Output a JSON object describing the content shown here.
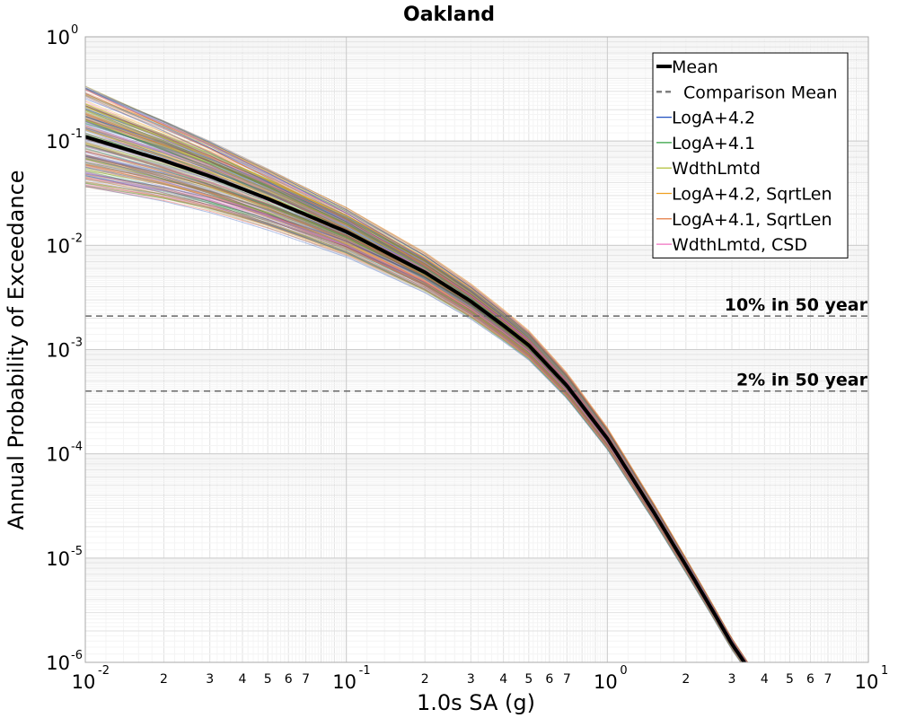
{
  "chart_data": {
    "type": "line",
    "title": "Oakland",
    "xlabel": "1.0s SA (g)",
    "ylabel": "Annual Probability of Exceedance",
    "xscale": "log",
    "yscale": "log",
    "xlim": [
      0.01,
      10
    ],
    "ylim": [
      1e-06,
      1
    ],
    "grid": true,
    "legend_placement": "top-right",
    "x_major_ticks": [
      {
        "base": "10",
        "exp": "-2",
        "value": 0.01
      },
      {
        "base": "10",
        "exp": "-1",
        "value": 0.1
      },
      {
        "base": "10",
        "exp": "0",
        "value": 1
      },
      {
        "base": "10",
        "exp": "1",
        "value": 10
      }
    ],
    "y_major_ticks": [
      {
        "base": "10",
        "exp": "0",
        "value": 1
      },
      {
        "base": "10",
        "exp": "-1",
        "value": 0.1
      },
      {
        "base": "10",
        "exp": "-2",
        "value": 0.01
      },
      {
        "base": "10",
        "exp": "-3",
        "value": 0.001
      },
      {
        "base": "10",
        "exp": "-4",
        "value": 0.0001
      },
      {
        "base": "10",
        "exp": "-5",
        "value": 1e-05
      },
      {
        "base": "10",
        "exp": "-6",
        "value": 1e-06
      }
    ],
    "x_minor_tick_labels": [
      "2",
      "3",
      "4",
      "5",
      "6",
      "7"
    ],
    "mean_curve": {
      "name": "Mean",
      "color": "#000000",
      "x": [
        0.01,
        0.02,
        0.03,
        0.05,
        0.1,
        0.2,
        0.3,
        0.4,
        0.5,
        0.7,
        1.0,
        1.5,
        2.0,
        2.5,
        3.0,
        3.5
      ],
      "y": [
        0.11,
        0.065,
        0.046,
        0.028,
        0.0135,
        0.0055,
        0.0029,
        0.0017,
        0.0011,
        0.00045,
        0.00014,
        2.8e-05,
        8.5e-06,
        3.3e-06,
        1.5e-06,
        8.5e-07
      ]
    },
    "reference_lines": [
      {
        "label": "10% in 50 year",
        "y": 0.0021
      },
      {
        "label": "2% in 50 year",
        "y": 0.0004
      }
    ],
    "series": [
      {
        "name": "Mean",
        "color": "#000000",
        "style": "solid-thick"
      },
      {
        "name": "Comparison Mean",
        "color": "#808080",
        "style": "dashed"
      },
      {
        "name": "LogA+4.2",
        "color": "#1f4fbf",
        "style": "solid"
      },
      {
        "name": "LogA+4.1",
        "color": "#2f9f3f",
        "style": "solid"
      },
      {
        "name": "WdthLmtd",
        "color": "#a8b820",
        "style": "solid"
      },
      {
        "name": "LogA+4.2, SqrtLen",
        "color": "#f0a020",
        "style": "solid"
      },
      {
        "name": "LogA+4.1, SqrtLen",
        "color": "#e06a28",
        "style": "solid"
      },
      {
        "name": "WdthLmtd, CSD",
        "color": "#f070c0",
        "style": "solid"
      }
    ],
    "branch_band": {
      "description_free": true,
      "y_at_x_min_range": [
        0.028,
        0.3
      ],
      "x_at_y_min_range": [
        3.2,
        3.8
      ]
    }
  }
}
